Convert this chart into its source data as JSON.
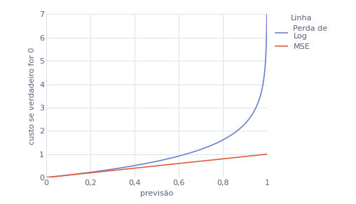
{
  "title": "",
  "xlabel": "previsão",
  "ylabel": "custo se verdadeiro for 0",
  "xlim": [
    0,
    1
  ],
  "ylim": [
    0,
    7
  ],
  "xticks": [
    0,
    0.2,
    0.4,
    0.6,
    0.8,
    1
  ],
  "yticks": [
    0,
    1,
    2,
    3,
    4,
    5,
    6,
    7
  ],
  "xtick_labels": [
    "0",
    "0,2",
    "0,4",
    "0,6",
    "0,8",
    "1"
  ],
  "ytick_labels": [
    "0",
    "1",
    "2",
    "3",
    "4",
    "5",
    "6",
    "7"
  ],
  "log_loss_color": "#7080d0",
  "mse_color": "#e06040",
  "legend_title": "Linha",
  "legend_labels": [
    "Perda de\nLog",
    "MSE"
  ],
  "background_color": "#ffffff",
  "grid_color": "#dce4f0",
  "text_color": "#5a6080",
  "font_size": 8,
  "legend_font_size": 8,
  "line_width": 1.2
}
